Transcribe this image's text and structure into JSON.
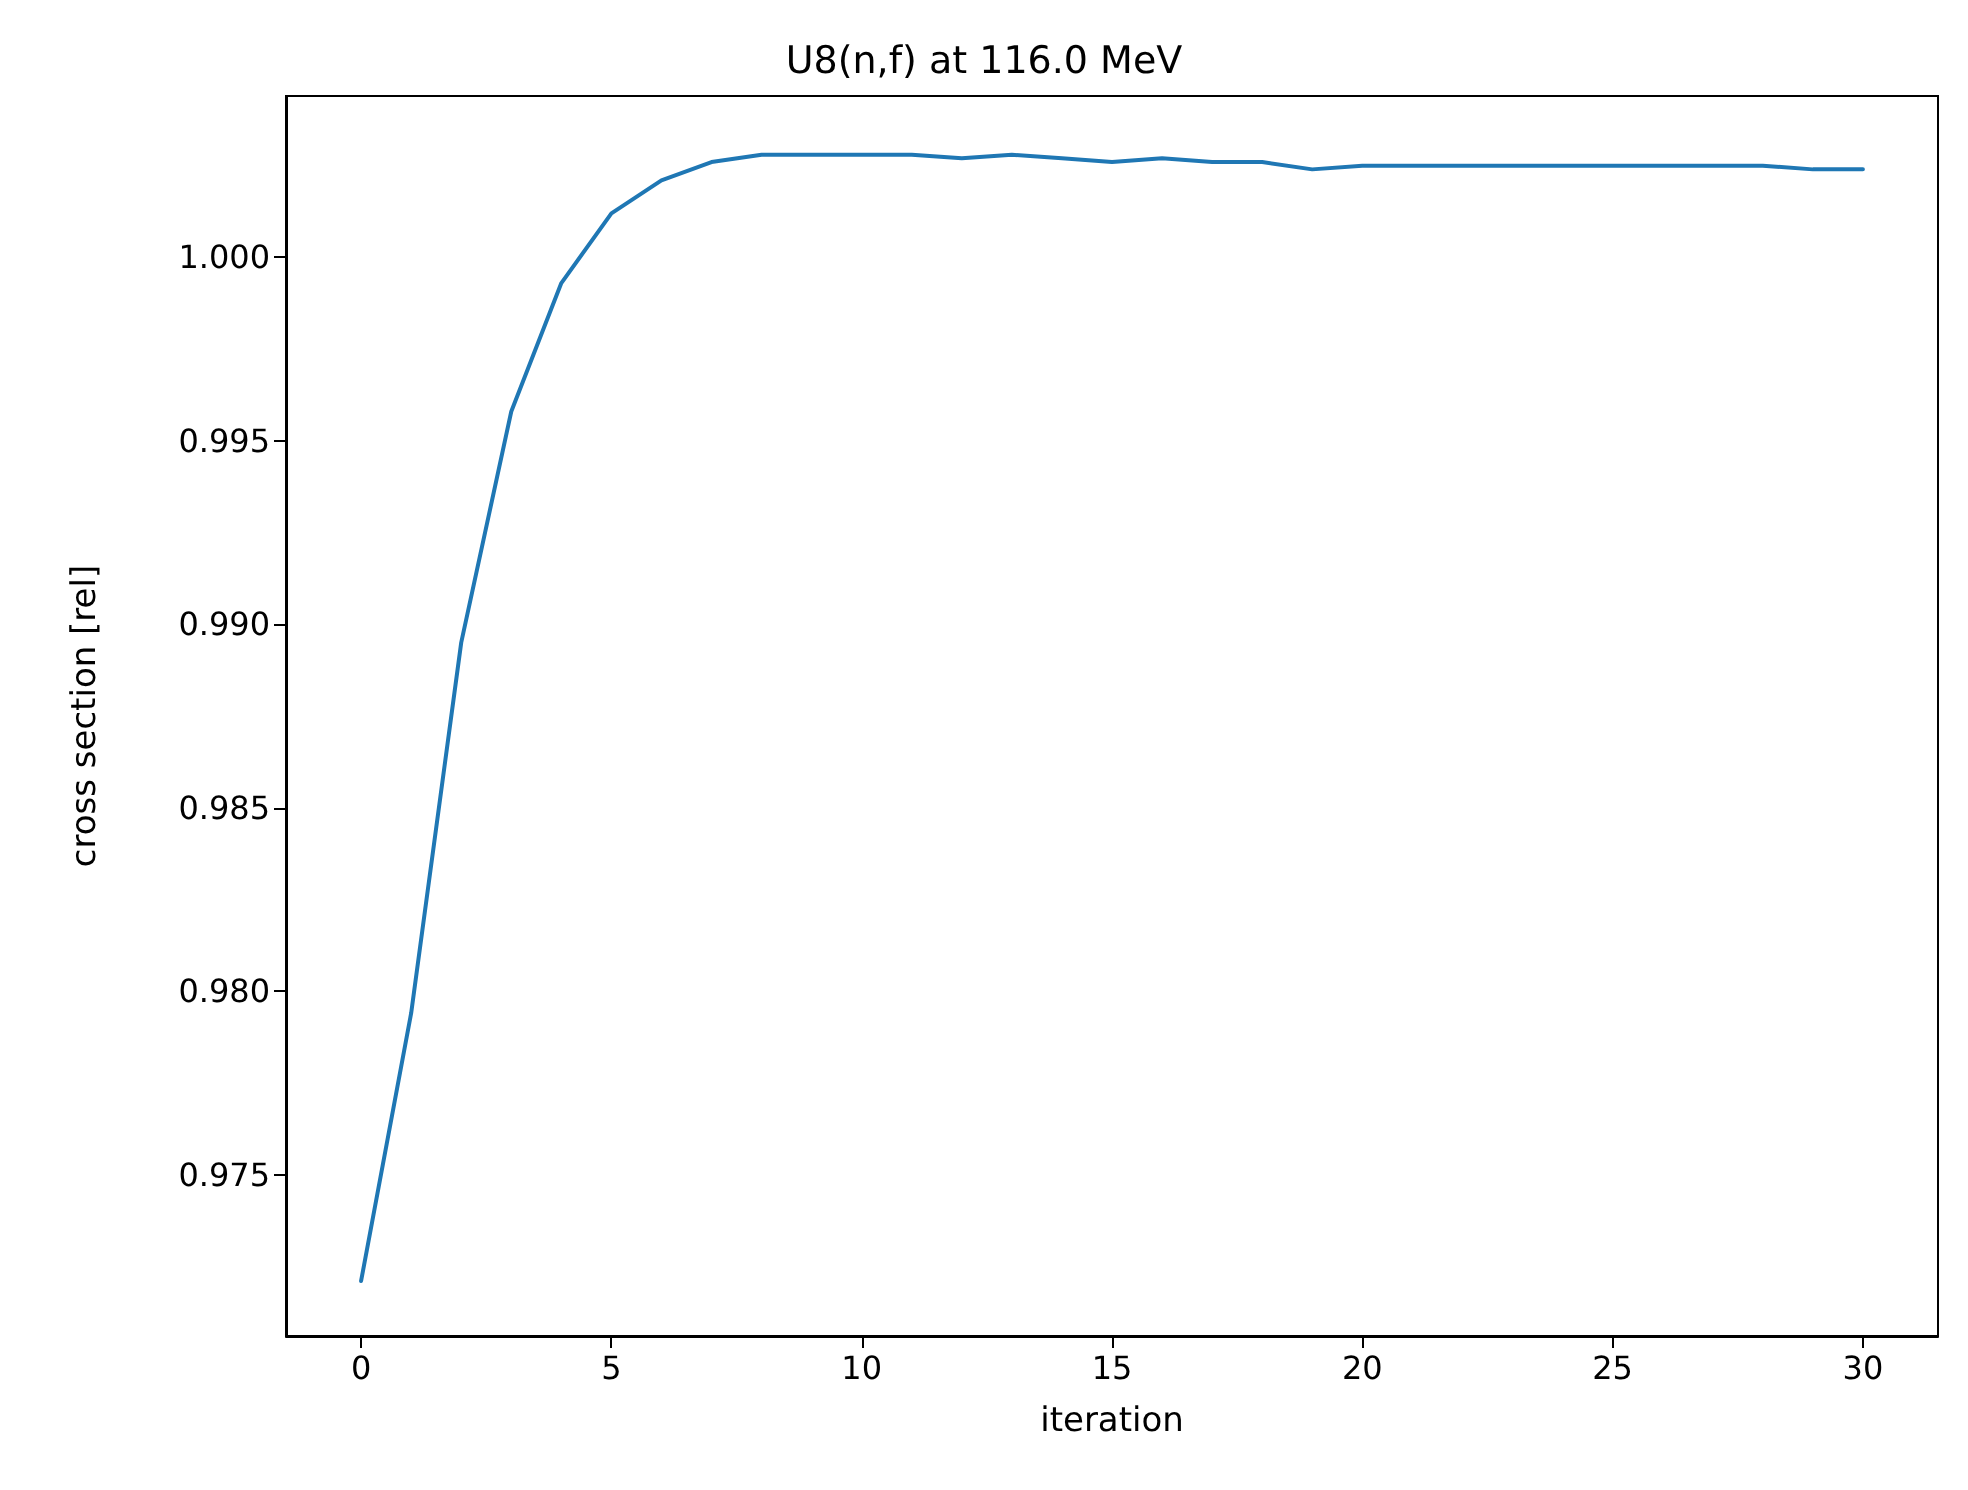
{
  "chart_data": {
    "type": "line",
    "title": "U8(n,f) at 116.0 MeV",
    "xlabel": "iteration",
    "ylabel": "cross section [rel]",
    "x": [
      0,
      1,
      2,
      3,
      4,
      5,
      6,
      7,
      8,
      9,
      10,
      11,
      12,
      13,
      14,
      15,
      16,
      17,
      18,
      19,
      20,
      21,
      22,
      23,
      24,
      25,
      26,
      27,
      28,
      29,
      30
    ],
    "series": [
      {
        "color": "#1f77b4",
        "values": [
          0.9721,
          0.9794,
          0.9895,
          0.9958,
          0.9993,
          1.0012,
          1.0021,
          1.0026,
          1.0028,
          1.0028,
          1.0028,
          1.0028,
          1.0027,
          1.0028,
          1.0027,
          1.0026,
          1.0027,
          1.0026,
          1.0026,
          1.0024,
          1.0025,
          1.0025,
          1.0025,
          1.0025,
          1.0025,
          1.0025,
          1.0025,
          1.0025,
          1.0025,
          1.0024,
          1.0024
        ]
      }
    ],
    "xlim": [
      -1.5,
      31.5
    ],
    "xticks": [
      0,
      5,
      10,
      15,
      20,
      25,
      30
    ],
    "ylim": [
      0.9706,
      1.0044
    ],
    "yticks": [
      {
        "value": 0.975,
        "label": "0.975"
      },
      {
        "value": 0.98,
        "label": "0.980"
      },
      {
        "value": 0.985,
        "label": "0.985"
      },
      {
        "value": 0.99,
        "label": "0.990"
      },
      {
        "value": 0.995,
        "label": "0.995"
      },
      {
        "value": 1,
        "label": "1.000"
      }
    ],
    "grid": false,
    "marker": "none",
    "line_style": "solid"
  }
}
